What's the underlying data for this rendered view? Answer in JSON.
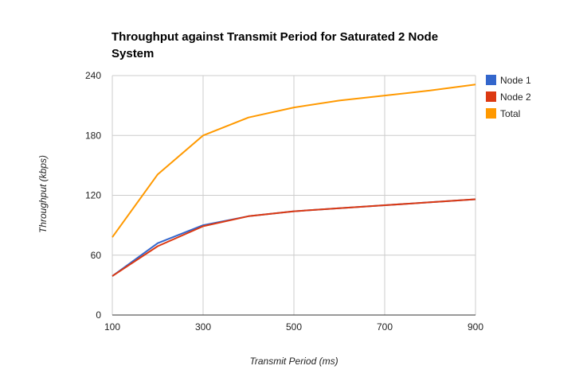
{
  "chart_data": {
    "type": "line",
    "title_line1": "Throughput against Transmit Period for Saturated 2 Node",
    "title_line2": "System",
    "xlabel": "Transmit Period (ms)",
    "ylabel": "Throughput (kbps)",
    "xlim": [
      100,
      900
    ],
    "ylim": [
      0,
      240
    ],
    "x_ticks": [
      "100",
      "300",
      "500",
      "700",
      "900"
    ],
    "y_ticks": [
      "0",
      "60",
      "120",
      "180",
      "240"
    ],
    "x": [
      100,
      200,
      300,
      400,
      500,
      600,
      700,
      800,
      900
    ],
    "grid": true,
    "legend_position": "right",
    "series": [
      {
        "name": "Node 1",
        "color": "#3366cc",
        "values": [
          39,
          72,
          90,
          99,
          104,
          107,
          110,
          113,
          116
        ]
      },
      {
        "name": "Node 2",
        "color": "#dc3912",
        "values": [
          39,
          69,
          89,
          99,
          104,
          107,
          110,
          113,
          116
        ]
      },
      {
        "name": "Total",
        "color": "#ff9900",
        "values": [
          78,
          141,
          180,
          198,
          208,
          215,
          220,
          225,
          231
        ]
      }
    ]
  }
}
